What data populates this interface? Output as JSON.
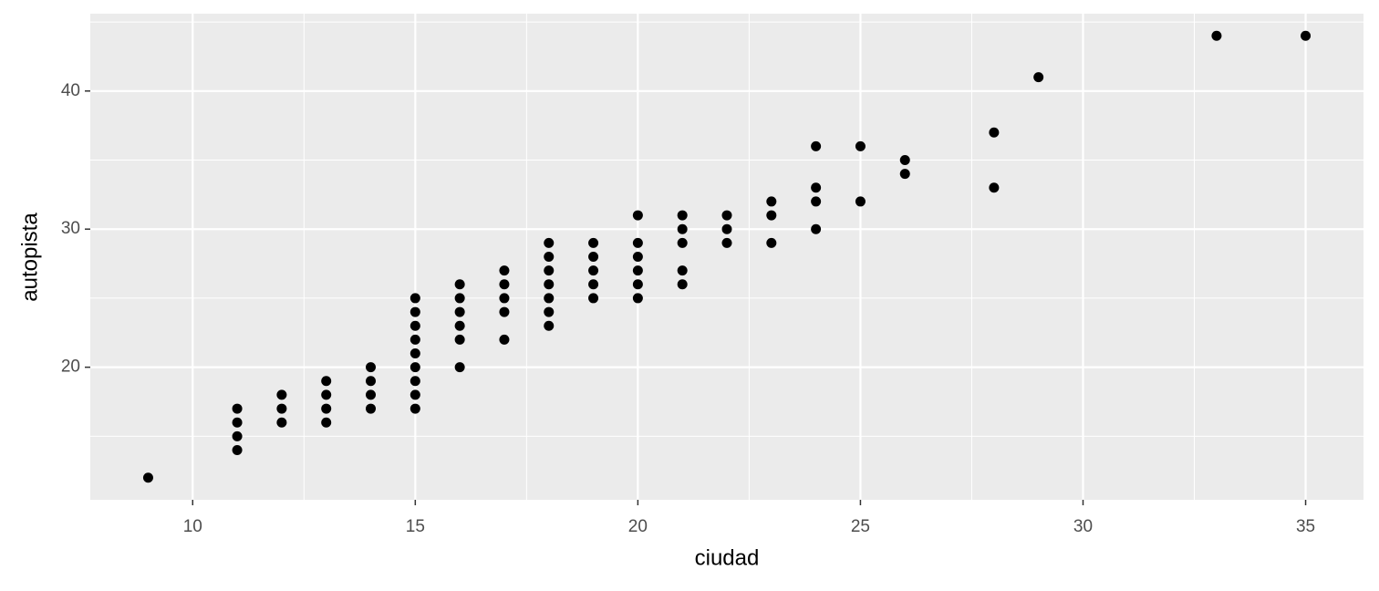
{
  "chart_data": {
    "type": "scatter",
    "x_label": "ciudad",
    "y_label": "autopista",
    "x": [
      9,
      11,
      11,
      11,
      11,
      12,
      12,
      12,
      13,
      13,
      13,
      13,
      14,
      14,
      14,
      14,
      15,
      15,
      15,
      15,
      15,
      15,
      15,
      15,
      15,
      16,
      16,
      16,
      16,
      16,
      16,
      17,
      17,
      17,
      17,
      17,
      18,
      18,
      18,
      18,
      18,
      18,
      18,
      19,
      19,
      19,
      19,
      19,
      20,
      20,
      20,
      20,
      20,
      20,
      21,
      21,
      21,
      21,
      21,
      22,
      22,
      22,
      23,
      23,
      23,
      24,
      24,
      24,
      24,
      25,
      25,
      26,
      26,
      28,
      28,
      29,
      33,
      35
    ],
    "y": [
      12,
      14,
      15,
      16,
      17,
      16,
      17,
      18,
      16,
      17,
      18,
      19,
      17,
      18,
      19,
      20,
      17,
      18,
      19,
      20,
      21,
      22,
      23,
      24,
      25,
      20,
      22,
      23,
      24,
      25,
      26,
      22,
      24,
      25,
      26,
      27,
      23,
      24,
      25,
      26,
      27,
      28,
      29,
      25,
      26,
      27,
      28,
      29,
      25,
      26,
      27,
      28,
      29,
      31,
      26,
      27,
      29,
      30,
      31,
      29,
      30,
      31,
      29,
      31,
      32,
      30,
      32,
      33,
      36,
      32,
      36,
      34,
      35,
      33,
      37,
      41,
      44,
      44
    ],
    "color": "#000000",
    "xlim": [
      7.7,
      36.3
    ],
    "xticks": [
      10,
      15,
      20,
      25,
      30,
      35
    ],
    "xminor_ticks": [
      12.5,
      17.5,
      22.5,
      27.5,
      32.5
    ],
    "ylim": [
      10.4,
      45.6
    ],
    "yticks": [
      20,
      30,
      40
    ],
    "yminor_ticks": [
      15,
      25,
      35,
      45
    ],
    "grid": true
  }
}
